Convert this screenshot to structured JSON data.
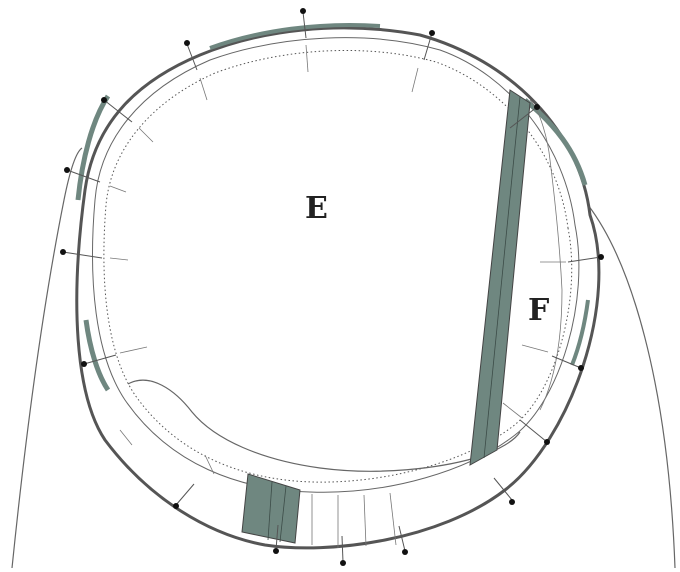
{
  "diagram": {
    "labels": {
      "region_e": "E",
      "region_f": "F"
    },
    "colors": {
      "outline": "#555555",
      "thin_line": "#666666",
      "band_fill": "#6f8780",
      "dotted": "#555555",
      "marker": "#111111",
      "background": "#ffffff"
    }
  }
}
